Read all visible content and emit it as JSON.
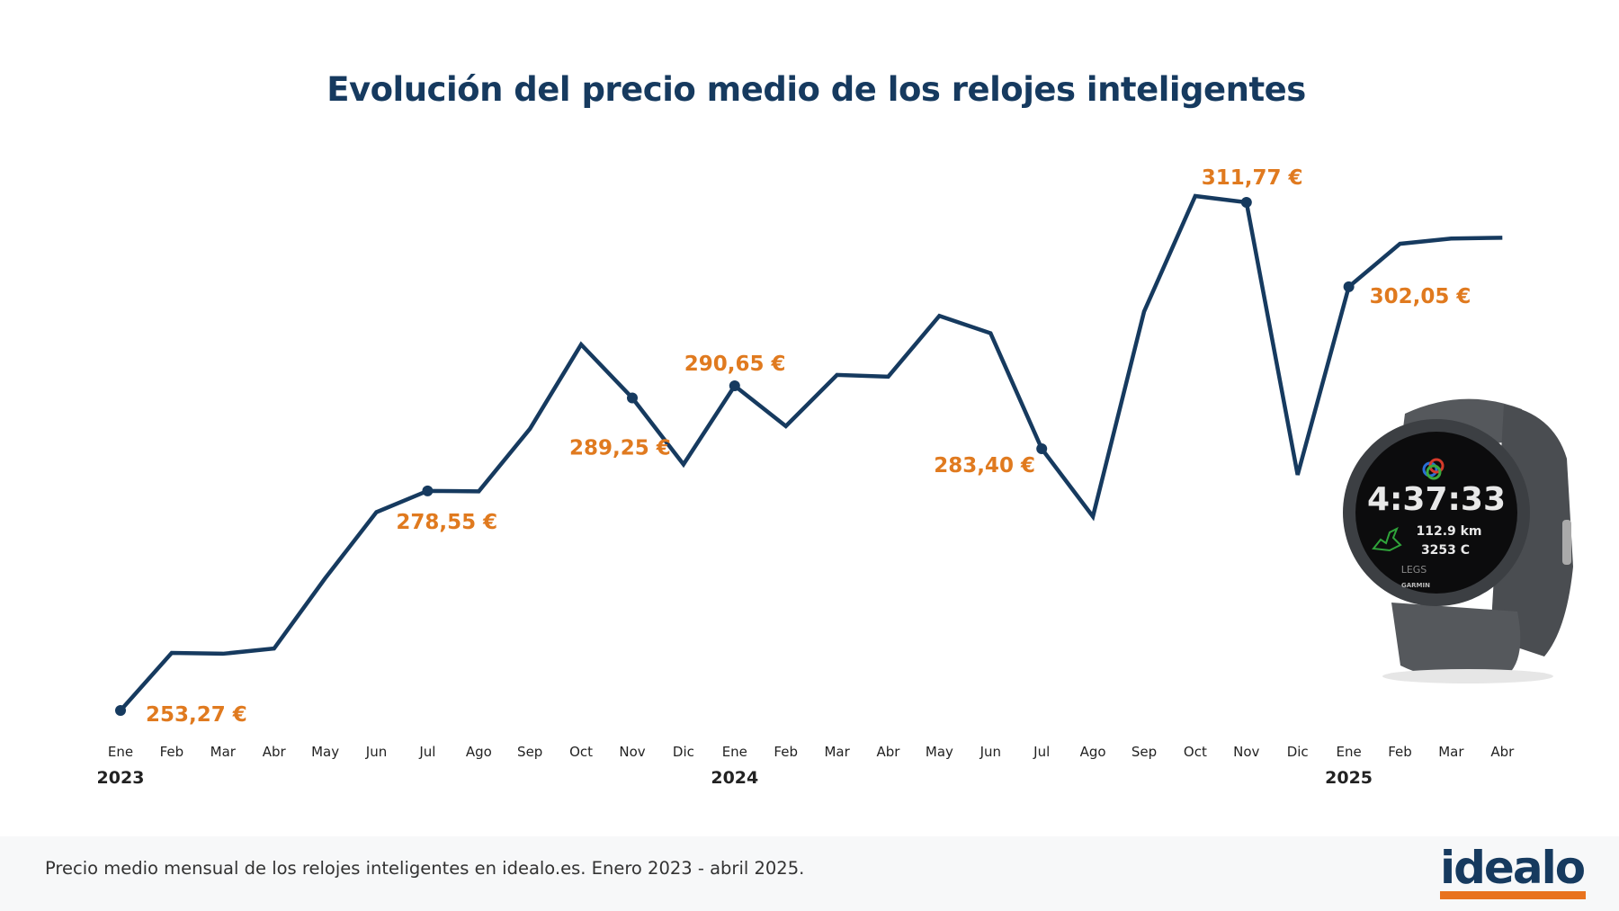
{
  "title": "Evolución del precio medio de los relojes inteligentes",
  "colors": {
    "line": "#163a5f",
    "label": "#e07a1f",
    "title": "#163a5f",
    "logo_bar": "#e8731e"
  },
  "chart_data": {
    "type": "line",
    "title": "Evolución del precio medio de los relojes inteligentes",
    "xlabel": "",
    "ylabel": "",
    "unit": "€",
    "grid": false,
    "legend": "none",
    "categories": [
      "Ene",
      "Feb",
      "Mar",
      "Abr",
      "May",
      "Jun",
      "Jul",
      "Ago",
      "Sep",
      "Oct",
      "Nov",
      "Dic",
      "Ene",
      "Feb",
      "Mar",
      "Abr",
      "May",
      "Jun",
      "Jul",
      "Ago",
      "Sep",
      "Oct",
      "Nov",
      "Dic",
      "Ene",
      "Feb",
      "Mar",
      "Abr"
    ],
    "years": [
      {
        "label": "2023",
        "index": 0
      },
      {
        "label": "2024",
        "index": 12
      },
      {
        "label": "2025",
        "index": 24
      }
    ],
    "values": [
      253.27,
      259.9,
      259.8,
      260.4,
      268.5,
      276.1,
      278.55,
      278.5,
      285.7,
      295.4,
      289.25,
      281.6,
      290.65,
      286.0,
      291.9,
      291.7,
      298.7,
      296.7,
      283.4,
      275.6,
      299.2,
      312.5,
      311.77,
      280.4,
      302.05,
      307.0,
      307.6,
      307.7
    ],
    "annotations": [
      {
        "index": 0,
        "text": "253,27 €"
      },
      {
        "index": 6,
        "text": "278,55 €"
      },
      {
        "index": 10,
        "text": "289,25 €"
      },
      {
        "index": 12,
        "text": "290,65 €"
      },
      {
        "index": 18,
        "text": "283,40 €"
      },
      {
        "index": 22,
        "text": "311,77 €"
      },
      {
        "index": 24,
        "text": "302,05 €"
      }
    ]
  },
  "watch": {
    "time": "4:37:33",
    "distance": "112.9 km",
    "calories": "3253 C",
    "mode": "LEGS",
    "brand": "GARMIN"
  },
  "footer": {
    "caption": "Precio medio mensual de los relojes inteligentes en idealo.es. Enero 2023 - abril 2025.",
    "logo": "idealo"
  }
}
